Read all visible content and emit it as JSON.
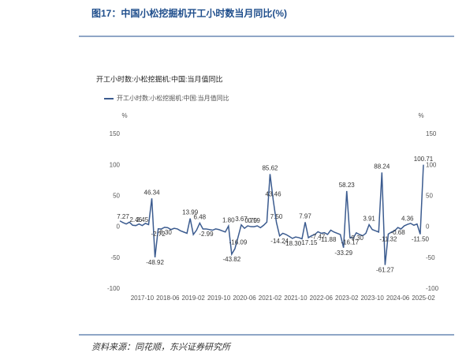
{
  "chart_data": {
    "type": "line",
    "title": "图17：中国小松挖掘机开工小时数当月同比(%)",
    "subtitle": "开工小时数:小松挖掘机:中国:当月值同比",
    "source": "资料来源：同花顺，东兴证券研究所",
    "y_unit": "%",
    "y2_unit": "%",
    "categories": [
      null,
      null,
      null,
      null,
      null,
      null,
      null,
      "2017-10",
      null,
      null,
      null,
      null,
      null,
      null,
      null,
      "2018-06",
      null,
      null,
      null,
      null,
      null,
      null,
      null,
      "2019-02",
      null,
      null,
      null,
      null,
      null,
      null,
      null,
      "2019-10",
      null,
      null,
      null,
      null,
      null,
      null,
      null,
      "2020-06",
      null,
      null,
      null,
      null,
      null,
      null,
      null,
      "2021-02",
      null,
      null,
      null,
      null,
      null,
      null,
      null,
      "2021-10",
      null,
      null,
      null,
      null,
      null,
      null,
      null,
      "2022-06",
      null,
      null,
      null,
      null,
      null,
      null,
      null,
      "2023-02",
      null,
      null,
      null,
      null,
      null,
      null,
      null,
      "2023-10",
      null,
      null,
      null,
      null,
      null,
      null,
      null,
      "2024-06",
      null,
      null,
      null,
      null,
      null,
      null,
      null,
      "2025-02"
    ],
    "series": [
      {
        "name": "开工小时数:小松挖掘机:中国:当月值同比",
        "color": "#3b5b8f",
        "values": [
          10,
          7.27,
          5,
          8,
          3,
          2.46,
          5,
          2.45,
          6,
          4,
          46.34,
          -48.92,
          -2.72,
          -3,
          -0.3,
          -1,
          -4,
          -2,
          -3,
          -6,
          -8,
          -10,
          13.99,
          -12,
          -5,
          6.48,
          -3,
          -2.99,
          -4,
          -5,
          -3,
          -4,
          -6,
          -8,
          1.8,
          -43.82,
          -35,
          -16.09,
          3.67,
          -2,
          2,
          0.7,
          0.59,
          2,
          -1,
          3,
          8,
          85.62,
          43.46,
          7.5,
          -14.24,
          -10,
          -12,
          -15,
          -18.3,
          -16,
          -17,
          -19,
          7.97,
          -17.15,
          -14,
          -12,
          -7.47,
          -10,
          -9,
          -11.88,
          -5,
          -8,
          -10,
          -12,
          -33.29,
          58.23,
          -16.17,
          -18,
          -9.3,
          -12,
          -14,
          -10,
          3.91,
          -4,
          -6,
          -8,
          88.24,
          -61.27,
          -11.32,
          -8,
          -6,
          -0.68,
          -3,
          2,
          4.36,
          6,
          3,
          5,
          -11.5,
          100.71
        ],
        "value_labels": [
          null,
          "7.27",
          null,
          null,
          null,
          "2.46",
          null,
          "2.45",
          null,
          null,
          "46.34",
          "-48.92",
          "-2.72",
          null,
          "-0.30",
          null,
          null,
          null,
          null,
          null,
          null,
          null,
          "13.99",
          null,
          null,
          "6.48",
          null,
          "-2.99",
          null,
          null,
          null,
          null,
          null,
          null,
          "1.80",
          "-43.82",
          null,
          "-16.09",
          "3.67",
          null,
          null,
          "0.70",
          "0.59",
          null,
          null,
          null,
          null,
          "85.62",
          "43.46",
          "7.50",
          "-14.24",
          null,
          null,
          null,
          "-18.30",
          null,
          null,
          null,
          "7.97",
          "-17.15",
          null,
          null,
          "-7.47",
          null,
          null,
          "-11.88",
          null,
          null,
          null,
          null,
          "-33.29",
          "58.23",
          "-16.17",
          null,
          "-9.30",
          null,
          null,
          null,
          "3.91",
          null,
          null,
          null,
          "88.24",
          "-61.27",
          "-11.32",
          null,
          null,
          "-0.68",
          null,
          null,
          "4.36",
          null,
          null,
          null,
          "-11.50",
          "100.71"
        ]
      }
    ],
    "ylim": [
      -100,
      150
    ],
    "yticks": [
      -100,
      -50,
      0,
      50,
      100,
      150
    ],
    "y2lim": [
      -100,
      150
    ],
    "y2ticks": [
      -100,
      -50,
      0,
      50,
      100,
      150
    ]
  }
}
